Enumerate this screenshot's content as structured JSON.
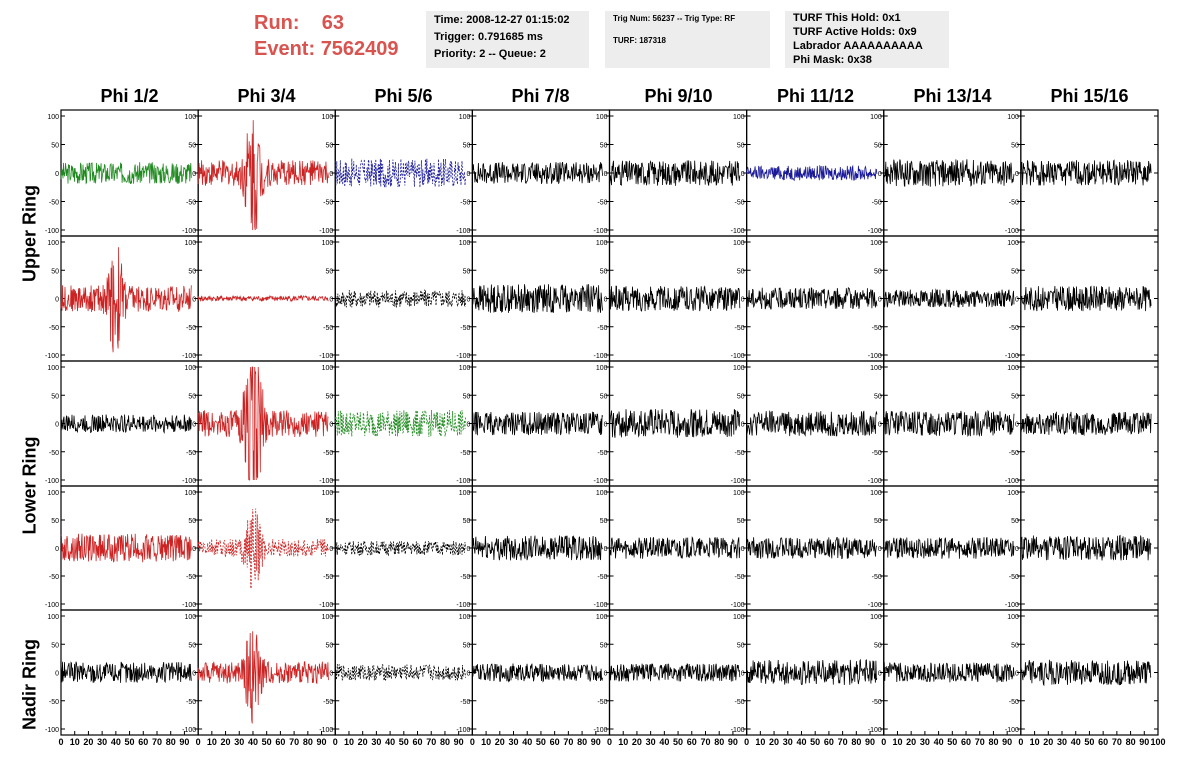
{
  "header": {
    "run_label": "Run:",
    "run_value": "63",
    "event_label": "Event:",
    "event_value": "7562409",
    "time_box": [
      "Time: 2008-12-27 01:15:02",
      "Trigger: 0.791685 ms",
      "Priority: 2 -- Queue: 2"
    ],
    "trig_box": [
      "Trig Num: 56237 -- Trig Type: RF",
      "",
      "TURF: 187318"
    ],
    "turf_box": [
      "TURF This Hold: 0x1",
      "TURF Active Holds: 0x9",
      "Labrador AAAAAAAAAA",
      "Phi Mask: 0x38"
    ]
  },
  "columns": [
    "Phi 1/2",
    "Phi 3/4",
    "Phi 5/6",
    "Phi 7/8",
    "Phi 9/10",
    "Phi 11/12",
    "Phi 13/14",
    "Phi 15/16"
  ],
  "row_labels": [
    "Upper Ring",
    "Lower Ring",
    "Nadir Ring"
  ],
  "chart_data": {
    "type": "line",
    "ylim": [
      -100,
      100
    ],
    "xlim": [
      0,
      100
    ],
    "y_ticks": [
      "100",
      "50",
      "0",
      "-50",
      "-100"
    ],
    "x_ticks": [
      "0",
      "10",
      "20",
      "30",
      "40",
      "50",
      "60",
      "70",
      "80",
      "90",
      "100"
    ],
    "rows": 5,
    "cols": 8,
    "colors": {
      "black": "#000000",
      "red": "#cc2222",
      "green": "#1f8a1f",
      "blue": "#1a1a99"
    },
    "panels": [
      {
        "color": "green",
        "amp": 12,
        "dashed": false,
        "spike": 0
      },
      {
        "color": "red",
        "amp": 14,
        "dashed": false,
        "spike": 60
      },
      {
        "color": "blue",
        "amp": 16,
        "dashed": true,
        "spike": 0
      },
      {
        "color": "black",
        "amp": 12,
        "dashed": false,
        "spike": 0
      },
      {
        "color": "black",
        "amp": 14,
        "dashed": false,
        "spike": 0
      },
      {
        "color": "blue",
        "amp": 8,
        "dashed": false,
        "spike": 0
      },
      {
        "color": "black",
        "amp": 15,
        "dashed": false,
        "spike": 0
      },
      {
        "color": "black",
        "amp": 14,
        "dashed": false,
        "spike": 0
      },
      {
        "color": "red",
        "amp": 15,
        "dashed": false,
        "spike": 50
      },
      {
        "color": "red",
        "amp": 3,
        "dashed": false,
        "spike": 0
      },
      {
        "color": "black",
        "amp": 10,
        "dashed": true,
        "spike": 0
      },
      {
        "color": "black",
        "amp": 16,
        "dashed": false,
        "spike": 0
      },
      {
        "color": "black",
        "amp": 14,
        "dashed": false,
        "spike": 0
      },
      {
        "color": "black",
        "amp": 12,
        "dashed": false,
        "spike": 0
      },
      {
        "color": "black",
        "amp": 10,
        "dashed": false,
        "spike": 0
      },
      {
        "color": "black",
        "amp": 14,
        "dashed": false,
        "spike": 0
      },
      {
        "color": "black",
        "amp": 10,
        "dashed": false,
        "spike": 0
      },
      {
        "color": "red",
        "amp": 15,
        "dashed": false,
        "spike": 100
      },
      {
        "color": "green",
        "amp": 15,
        "dashed": true,
        "spike": 0
      },
      {
        "color": "black",
        "amp": 13,
        "dashed": false,
        "spike": 0
      },
      {
        "color": "black",
        "amp": 16,
        "dashed": false,
        "spike": 0
      },
      {
        "color": "black",
        "amp": 14,
        "dashed": false,
        "spike": 0
      },
      {
        "color": "black",
        "amp": 14,
        "dashed": false,
        "spike": 0
      },
      {
        "color": "black",
        "amp": 13,
        "dashed": false,
        "spike": 0
      },
      {
        "color": "red",
        "amp": 16,
        "dashed": false,
        "spike": 0
      },
      {
        "color": "red",
        "amp": 10,
        "dashed": true,
        "spike": 40
      },
      {
        "color": "black",
        "amp": 8,
        "dashed": true,
        "spike": 0
      },
      {
        "color": "black",
        "amp": 14,
        "dashed": false,
        "spike": 0
      },
      {
        "color": "black",
        "amp": 12,
        "dashed": false,
        "spike": 0
      },
      {
        "color": "black",
        "amp": 12,
        "dashed": false,
        "spike": 0
      },
      {
        "color": "black",
        "amp": 12,
        "dashed": false,
        "spike": 0
      },
      {
        "color": "black",
        "amp": 14,
        "dashed": false,
        "spike": 0
      },
      {
        "color": "black",
        "amp": 12,
        "dashed": false,
        "spike": 0
      },
      {
        "color": "red",
        "amp": 12,
        "dashed": false,
        "spike": 45
      },
      {
        "color": "black",
        "amp": 9,
        "dashed": true,
        "spike": 0
      },
      {
        "color": "black",
        "amp": 10,
        "dashed": false,
        "spike": 0
      },
      {
        "color": "black",
        "amp": 10,
        "dashed": false,
        "spike": 0
      },
      {
        "color": "black",
        "amp": 14,
        "dashed": false,
        "spike": 0
      },
      {
        "color": "black",
        "amp": 11,
        "dashed": false,
        "spike": 0
      },
      {
        "color": "black",
        "amp": 14,
        "dashed": false,
        "spike": 0
      }
    ]
  }
}
